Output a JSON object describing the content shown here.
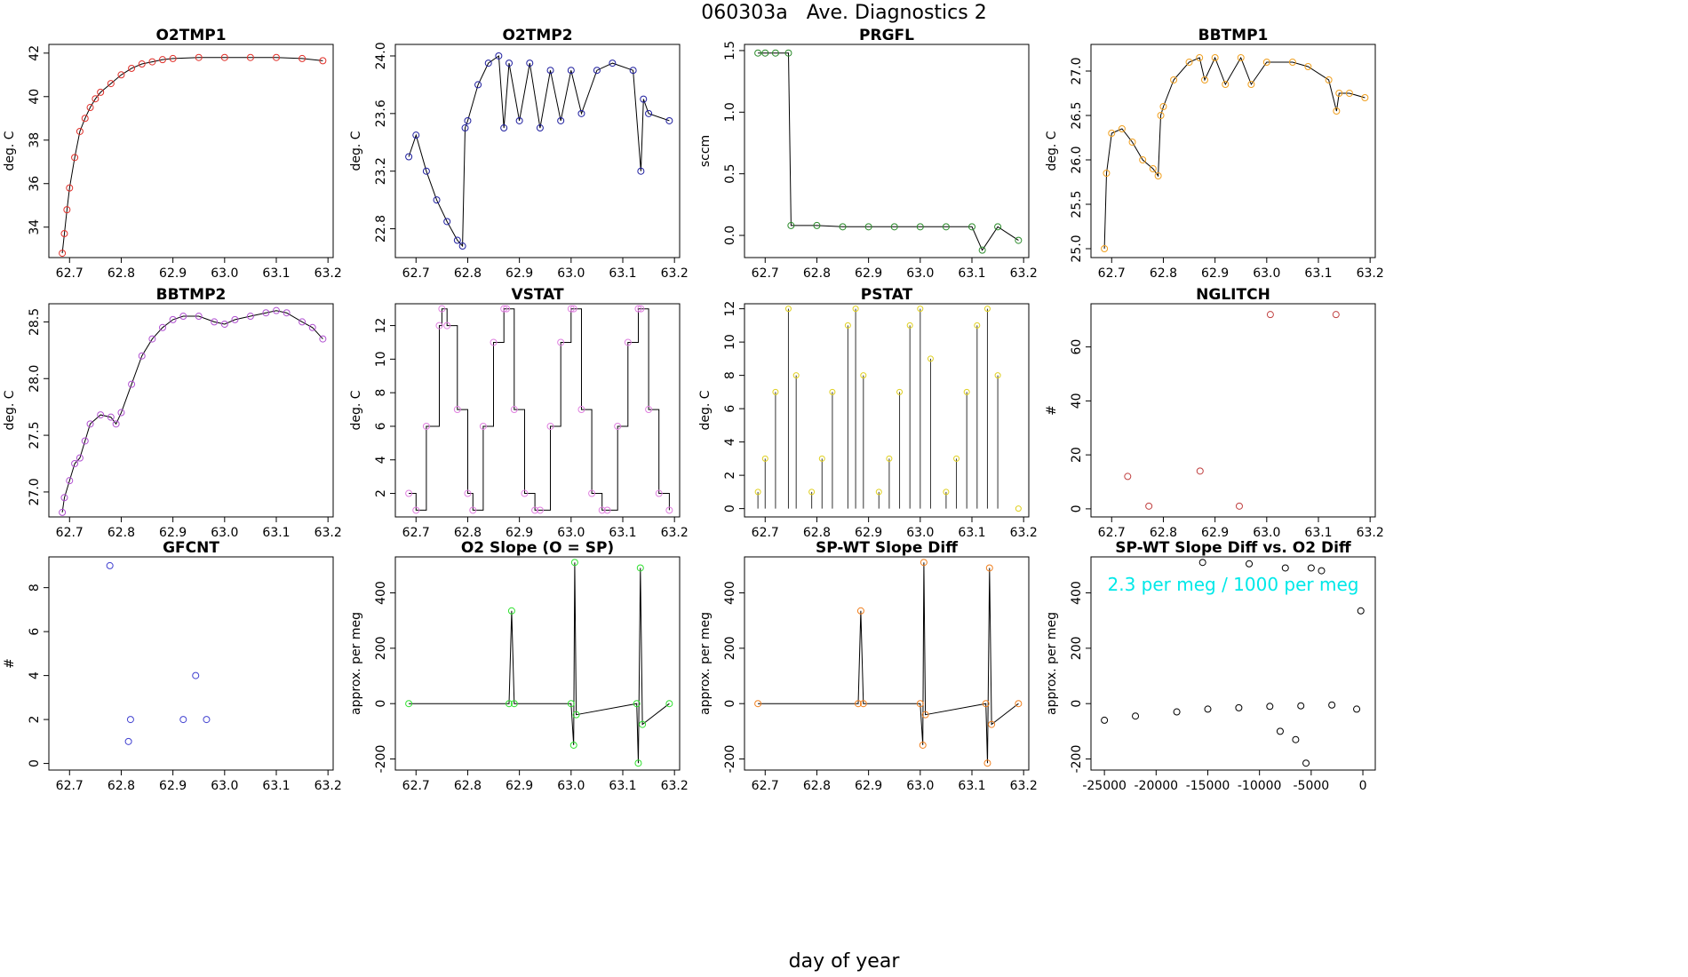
{
  "figure": {
    "title": "060303a   Ave. Diagnostics 2",
    "xlabel": "day of year"
  },
  "chart_data": [
    {
      "type": "line",
      "title": "O2TMP1",
      "ylabel": "deg. C",
      "color": "#e0302a",
      "xlim": [
        62.66,
        63.21
      ],
      "ylim": [
        32.6,
        42.4
      ],
      "xticks": [
        "62.7",
        "62.8",
        "62.9",
        "63.0",
        "63.1",
        "63.2"
      ],
      "xtick_values": [
        62.7,
        62.8,
        62.9,
        63.0,
        63.1,
        63.2
      ],
      "yticks": [
        "34",
        "36",
        "38",
        "40",
        "42"
      ],
      "ytick_values": [
        34,
        36,
        38,
        40,
        42
      ],
      "x": [
        62.686,
        62.69,
        62.695,
        62.7,
        62.71,
        62.72,
        62.73,
        62.74,
        62.75,
        62.76,
        62.78,
        62.8,
        62.82,
        62.84,
        62.86,
        62.88,
        62.9,
        62.95,
        63.0,
        63.05,
        63.1,
        63.15,
        63.19
      ],
      "values": [
        32.8,
        33.7,
        34.8,
        35.8,
        37.2,
        38.4,
        39.0,
        39.5,
        39.9,
        40.2,
        40.6,
        41.0,
        41.3,
        41.5,
        41.6,
        41.7,
        41.75,
        41.8,
        41.8,
        41.8,
        41.8,
        41.75,
        41.65
      ]
    },
    {
      "type": "line",
      "title": "O2TMP2",
      "ylabel": "deg. C",
      "color": "#1f1f9f",
      "xlim": [
        62.66,
        63.21
      ],
      "ylim": [
        22.6,
        24.08
      ],
      "xticks": [
        "62.7",
        "62.8",
        "62.9",
        "63.0",
        "63.1",
        "63.2"
      ],
      "xtick_values": [
        62.7,
        62.8,
        62.9,
        63.0,
        63.1,
        63.2
      ],
      "yticks": [
        "22.8",
        "23.2",
        "23.6",
        "24.0"
      ],
      "ytick_values": [
        22.8,
        23.2,
        23.6,
        24.0
      ],
      "x": [
        62.686,
        62.7,
        62.72,
        62.74,
        62.76,
        62.78,
        62.79,
        62.795,
        62.8,
        62.82,
        62.84,
        62.86,
        62.87,
        62.88,
        62.9,
        62.92,
        62.94,
        62.96,
        62.98,
        63.0,
        63.02,
        63.05,
        63.08,
        63.12,
        63.135,
        63.14,
        63.15,
        63.19
      ],
      "values": [
        23.3,
        23.45,
        23.2,
        23.0,
        22.85,
        22.72,
        22.68,
        23.5,
        23.55,
        23.8,
        23.95,
        24.0,
        23.5,
        23.95,
        23.55,
        23.95,
        23.5,
        23.9,
        23.55,
        23.9,
        23.6,
        23.9,
        23.95,
        23.9,
        23.2,
        23.7,
        23.6,
        23.55
      ]
    },
    {
      "type": "line",
      "title": "PRGFL",
      "ylabel": "sccm",
      "color": "#2a8a2a",
      "xlim": [
        62.66,
        63.21
      ],
      "ylim": [
        -0.18,
        1.55
      ],
      "xticks": [
        "62.7",
        "62.8",
        "62.9",
        "63.0",
        "63.1",
        "63.2"
      ],
      "xtick_values": [
        62.7,
        62.8,
        62.9,
        63.0,
        63.1,
        63.2
      ],
      "yticks": [
        "0.0",
        "0.5",
        "1.0",
        "1.5"
      ],
      "ytick_values": [
        0.0,
        0.5,
        1.0,
        1.5
      ],
      "x": [
        62.686,
        62.7,
        62.72,
        62.745,
        62.75,
        62.8,
        62.85,
        62.9,
        62.95,
        63.0,
        63.05,
        63.1,
        63.12,
        63.15,
        63.19
      ],
      "values": [
        1.48,
        1.48,
        1.48,
        1.48,
        0.08,
        0.08,
        0.07,
        0.07,
        0.07,
        0.07,
        0.07,
        0.07,
        -0.12,
        0.07,
        -0.04
      ]
    },
    {
      "type": "line",
      "title": "BBTMP1",
      "ylabel": "deg. C",
      "color": "#f0a020",
      "xlim": [
        62.66,
        63.21
      ],
      "ylim": [
        24.9,
        27.3
      ],
      "xticks": [
        "62.7",
        "62.8",
        "62.9",
        "63.0",
        "63.1",
        "63.2"
      ],
      "xtick_values": [
        62.7,
        62.8,
        62.9,
        63.0,
        63.1,
        63.2
      ],
      "yticks": [
        "25.0",
        "25.5",
        "26.0",
        "26.5",
        "27.0"
      ],
      "ytick_values": [
        25.0,
        25.5,
        26.0,
        26.5,
        27.0
      ],
      "x": [
        62.686,
        62.69,
        62.7,
        62.72,
        62.74,
        62.76,
        62.78,
        62.79,
        62.795,
        62.8,
        62.82,
        62.85,
        62.87,
        62.88,
        62.9,
        62.92,
        62.95,
        62.97,
        63.0,
        63.05,
        63.08,
        63.12,
        63.135,
        63.14,
        63.16,
        63.19
      ],
      "values": [
        25.0,
        25.85,
        26.3,
        26.35,
        26.2,
        26.0,
        25.9,
        25.82,
        26.5,
        26.6,
        26.9,
        27.1,
        27.15,
        26.9,
        27.15,
        26.85,
        27.15,
        26.85,
        27.1,
        27.1,
        27.05,
        26.9,
        26.55,
        26.75,
        26.75,
        26.7
      ]
    },
    {
      "type": "line",
      "title": "BBTMP2",
      "ylabel": "deg. C",
      "color": "#b050d0",
      "xlim": [
        62.66,
        63.21
      ],
      "ylim": [
        26.78,
        28.66
      ],
      "xticks": [
        "62.7",
        "62.8",
        "62.9",
        "63.0",
        "63.1",
        "63.2"
      ],
      "xtick_values": [
        62.7,
        62.8,
        62.9,
        63.0,
        63.1,
        63.2
      ],
      "yticks": [
        "27.0",
        "27.5",
        "28.0",
        "28.5"
      ],
      "ytick_values": [
        27.0,
        27.5,
        28.0,
        28.5
      ],
      "x": [
        62.686,
        62.69,
        62.7,
        62.71,
        62.72,
        62.73,
        62.74,
        62.76,
        62.78,
        62.79,
        62.8,
        62.82,
        62.84,
        62.86,
        62.88,
        62.9,
        62.92,
        62.95,
        62.98,
        63.0,
        63.02,
        63.05,
        63.08,
        63.1,
        63.12,
        63.15,
        63.17,
        63.19
      ],
      "values": [
        26.82,
        26.95,
        27.1,
        27.25,
        27.3,
        27.45,
        27.6,
        27.68,
        27.66,
        27.6,
        27.7,
        27.95,
        28.2,
        28.35,
        28.45,
        28.52,
        28.55,
        28.55,
        28.5,
        28.48,
        28.52,
        28.55,
        28.58,
        28.6,
        28.58,
        28.5,
        28.45,
        28.35
      ]
    },
    {
      "type": "step",
      "title": "VSTAT",
      "ylabel": "deg. C",
      "color": "#e080e0",
      "xlim": [
        62.66,
        63.21
      ],
      "ylim": [
        0.6,
        13.3
      ],
      "xticks": [
        "62.7",
        "62.8",
        "62.9",
        "63.0",
        "63.1",
        "63.2"
      ],
      "xtick_values": [
        62.7,
        62.8,
        62.9,
        63.0,
        63.1,
        63.2
      ],
      "yticks": [
        "2",
        "4",
        "6",
        "8",
        "10",
        "12"
      ],
      "ytick_values": [
        2,
        4,
        6,
        8,
        10,
        12
      ],
      "x": [
        62.686,
        62.7,
        62.72,
        62.745,
        62.75,
        62.76,
        62.78,
        62.8,
        62.81,
        62.83,
        62.85,
        62.87,
        62.875,
        62.89,
        62.91,
        62.93,
        62.94,
        62.96,
        62.98,
        63.0,
        63.005,
        63.02,
        63.04,
        63.06,
        63.07,
        63.09,
        63.11,
        63.13,
        63.135,
        63.15,
        63.17,
        63.19
      ],
      "values": [
        2,
        1,
        6,
        12,
        13,
        12,
        7,
        2,
        1,
        6,
        11,
        13,
        13,
        7,
        2,
        1,
        1,
        6,
        11,
        13,
        13,
        7,
        2,
        1,
        1,
        6,
        11,
        13,
        13,
        7,
        2,
        1
      ]
    },
    {
      "type": "bar",
      "title": "PSTAT",
      "ylabel": "deg. C",
      "color": "#e0d020",
      "xlim": [
        62.66,
        63.21
      ],
      "ylim": [
        -0.5,
        12.3
      ],
      "xticks": [
        "62.7",
        "62.8",
        "62.9",
        "63.0",
        "63.1",
        "63.2"
      ],
      "xtick_values": [
        62.7,
        62.8,
        62.9,
        63.0,
        63.1,
        63.2
      ],
      "yticks": [
        "0",
        "2",
        "4",
        "6",
        "8",
        "10",
        "12"
      ],
      "ytick_values": [
        0,
        2,
        4,
        6,
        8,
        10,
        12
      ],
      "x": [
        62.686,
        62.7,
        62.72,
        62.745,
        62.76,
        62.79,
        62.81,
        62.83,
        62.86,
        62.875,
        62.89,
        62.92,
        62.94,
        62.96,
        62.98,
        63.0,
        63.02,
        63.05,
        63.07,
        63.09,
        63.11,
        63.13,
        63.15,
        63.19
      ],
      "values": [
        1,
        3,
        7,
        12,
        8,
        1,
        3,
        7,
        11,
        12,
        8,
        1,
        3,
        7,
        11,
        12,
        9,
        1,
        3,
        7,
        11,
        12,
        8,
        0
      ]
    },
    {
      "type": "scatter",
      "title": "NGLITCH",
      "ylabel": "#",
      "color": "#c04040",
      "xlim": [
        62.66,
        63.21
      ],
      "ylim": [
        -3,
        76
      ],
      "xticks": [
        "62.7",
        "62.8",
        "62.9",
        "63.0",
        "63.1",
        "63.2"
      ],
      "xtick_values": [
        62.7,
        62.8,
        62.9,
        63.0,
        63.1,
        63.2
      ],
      "yticks": [
        "0",
        "20",
        "40",
        "60"
      ],
      "ytick_values": [
        0,
        20,
        40,
        60
      ],
      "x": [
        62.731,
        62.772,
        62.871,
        62.947,
        63.007,
        63.134
      ],
      "values": [
        12,
        1,
        14,
        1,
        72,
        72
      ]
    },
    {
      "type": "scatter",
      "title": "GFCNT",
      "ylabel": "#",
      "color": "#4040d0",
      "xlim": [
        62.66,
        63.21
      ],
      "ylim": [
        -0.3,
        9.4
      ],
      "xticks": [
        "62.7",
        "62.8",
        "62.9",
        "63.0",
        "63.1",
        "63.2"
      ],
      "xtick_values": [
        62.7,
        62.8,
        62.9,
        63.0,
        63.1,
        63.2
      ],
      "yticks": [
        "0",
        "2",
        "4",
        "6",
        "8"
      ],
      "ytick_values": [
        0,
        2,
        4,
        6,
        8
      ],
      "x": [
        62.778,
        62.814,
        62.818,
        62.92,
        62.944,
        62.965
      ],
      "values": [
        9,
        1,
        2,
        2,
        4,
        2
      ]
    },
    {
      "type": "line",
      "title": "O2 Slope (O = SP)",
      "ylabel": "approx. per meg",
      "color": "#30e030",
      "xlim": [
        62.66,
        63.21
      ],
      "ylim": [
        -240,
        530
      ],
      "xticks": [
        "62.7",
        "62.8",
        "62.9",
        "63.0",
        "63.1",
        "63.2"
      ],
      "xtick_values": [
        62.7,
        62.8,
        62.9,
        63.0,
        63.1,
        63.2
      ],
      "yticks": [
        "-200",
        "0",
        "200",
        "400"
      ],
      "ytick_values": [
        -200,
        0,
        200,
        400
      ],
      "x": [
        62.686,
        62.88,
        62.885,
        62.89,
        63.0,
        63.005,
        63.007,
        63.01,
        63.127,
        63.13,
        63.134,
        63.138,
        63.19
      ],
      "values": [
        0,
        0,
        335,
        0,
        0,
        -150,
        510,
        -40,
        0,
        -215,
        490,
        -75,
        0
      ]
    },
    {
      "type": "line",
      "title": "SP-WT Slope Diff",
      "ylabel": "approx. per meg",
      "color": "#f08020",
      "xlim": [
        62.66,
        63.21
      ],
      "ylim": [
        -240,
        530
      ],
      "xticks": [
        "62.7",
        "62.8",
        "62.9",
        "63.0",
        "63.1",
        "63.2"
      ],
      "xtick_values": [
        62.7,
        62.8,
        62.9,
        63.0,
        63.1,
        63.2
      ],
      "yticks": [
        "-200",
        "0",
        "200",
        "400"
      ],
      "ytick_values": [
        -200,
        0,
        200,
        400
      ],
      "x": [
        62.686,
        62.88,
        62.885,
        62.89,
        63.0,
        63.005,
        63.007,
        63.01,
        63.127,
        63.13,
        63.134,
        63.138,
        63.19
      ],
      "values": [
        0,
        0,
        335,
        0,
        0,
        -150,
        510,
        -40,
        0,
        -215,
        490,
        -75,
        0
      ]
    },
    {
      "type": "scatter",
      "title": "SP-WT Slope Diff vs. O2 Diff",
      "ylabel": "approx. per meg",
      "color": "#000000",
      "xlim": [
        -26300,
        1200
      ],
      "ylim": [
        -240,
        530
      ],
      "xticks": [
        "-25000",
        "-20000",
        "-15000",
        "-10000",
        "-5000",
        "0"
      ],
      "xtick_values": [
        -25000,
        -20000,
        -15000,
        -10000,
        -5000,
        0
      ],
      "yticks": [
        "-200",
        "0",
        "200",
        "400"
      ],
      "ytick_values": [
        -200,
        0,
        200,
        400
      ],
      "annotation": "2.3 per meg / 1000 per meg",
      "annotation_color": "#00e8e8",
      "x": [
        -25000,
        -22000,
        -18000,
        -15000,
        -12000,
        -9000,
        -6000,
        -3000,
        -15500,
        -11000,
        -7500,
        -5000,
        -4000,
        -5500,
        -200,
        -600,
        -8000,
        -6500
      ],
      "values": [
        -60,
        -45,
        -30,
        -20,
        -15,
        -10,
        -8,
        -5,
        510,
        505,
        490,
        490,
        480,
        -215,
        335,
        -20,
        -100,
        -130
      ]
    }
  ]
}
